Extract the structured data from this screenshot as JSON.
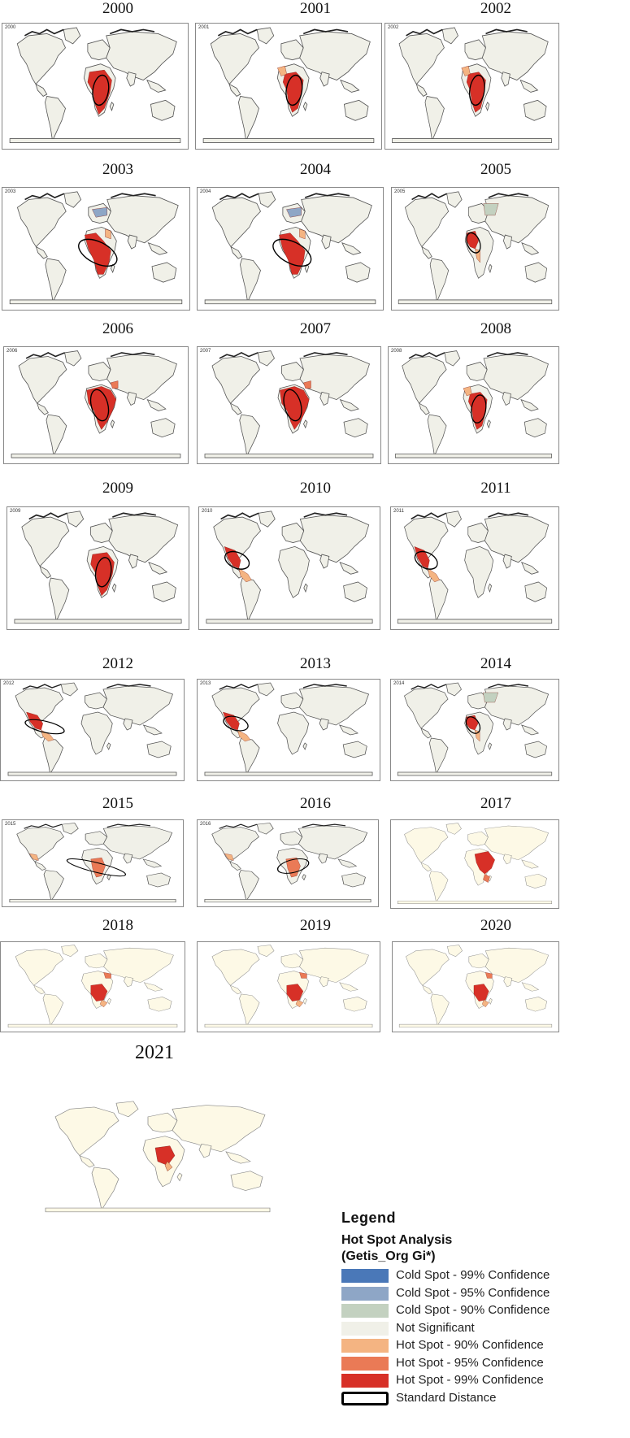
{
  "maps": [
    {
      "year": "2000",
      "corner": "2000",
      "style": "a",
      "hot": "africa-south",
      "ellipse": "africa-small"
    },
    {
      "year": "2001",
      "corner": "2001",
      "style": "a",
      "hot": "africa-south2",
      "ellipse": "africa-small"
    },
    {
      "year": "2002",
      "corner": "2002",
      "style": "a",
      "hot": "africa-south2",
      "ellipse": "africa-small"
    },
    {
      "year": "2003",
      "corner": "2003",
      "style": "a",
      "hot": "africa-west",
      "ellipse": "africa-wide"
    },
    {
      "year": "2004",
      "corner": "2004",
      "style": "a",
      "hot": "africa-west",
      "ellipse": "africa-wide"
    },
    {
      "year": "2005",
      "corner": "2005",
      "style": "a",
      "hot": "africa-west-small",
      "ellipse": "africa-westsmall"
    },
    {
      "year": "2006",
      "corner": "2006",
      "style": "a",
      "hot": "africa-full",
      "ellipse": "africa-mid"
    },
    {
      "year": "2007",
      "corner": "2007",
      "style": "a",
      "hot": "africa-full",
      "ellipse": "africa-mid"
    },
    {
      "year": "2008",
      "corner": "2008",
      "style": "a",
      "hot": "africa-south2",
      "ellipse": "africa-small"
    },
    {
      "year": "2009",
      "corner": "2009",
      "style": "a",
      "hot": "africa-south",
      "ellipse": "africa-small"
    },
    {
      "year": "2010",
      "corner": "2010",
      "style": "a",
      "hot": "americas",
      "ellipse": "americas"
    },
    {
      "year": "2011",
      "corner": "2011",
      "style": "a",
      "hot": "americas",
      "ellipse": "americas"
    },
    {
      "year": "2012",
      "corner": "2012",
      "style": "a",
      "hot": "americas",
      "ellipse": "americas-wide"
    },
    {
      "year": "2013",
      "corner": "2013",
      "style": "a",
      "hot": "americas",
      "ellipse": "americas"
    },
    {
      "year": "2014",
      "corner": "2014",
      "style": "a",
      "hot": "africa-west-small",
      "ellipse": "africa-westsmall"
    },
    {
      "year": "2015",
      "corner": "2015",
      "style": "a",
      "hot": "africa-light",
      "ellipse": "atlantic"
    },
    {
      "year": "2016",
      "corner": "2016",
      "style": "a",
      "hot": "africa-light",
      "ellipse": "africa-east"
    },
    {
      "year": "2017",
      "corner": "",
      "style": "b",
      "hot": "africa-east",
      "ellipse": ""
    },
    {
      "year": "2018",
      "corner": "",
      "style": "b",
      "hot": "africa-central",
      "ellipse": ""
    },
    {
      "year": "2019",
      "corner": "",
      "style": "b",
      "hot": "africa-central",
      "ellipse": ""
    },
    {
      "year": "2020",
      "corner": "",
      "style": "b",
      "hot": "africa-central",
      "ellipse": ""
    },
    {
      "year": "2021",
      "corner": "",
      "style": "b",
      "hot": "africa-mid-only",
      "ellipse": ""
    }
  ],
  "legend": {
    "title": "Legend",
    "subtitle1": "Hot Spot Analysis",
    "subtitle2": "(Getis_Org Gi*)",
    "items": [
      {
        "label": "Cold Spot - 99% Confidence",
        "color": "#4a78b8"
      },
      {
        "label": "Cold Spot - 95% Confidence",
        "color": "#8ea6c6"
      },
      {
        "label": "Cold Spot - 90% Confidence",
        "color": "#c3d1c0"
      },
      {
        "label": "Not Significant",
        "color": "#f0f0e8"
      },
      {
        "label": "Hot Spot - 90% Confidence",
        "color": "#f4b482"
      },
      {
        "label": "Hot Spot - 95% Confidence",
        "color": "#ea7a56"
      },
      {
        "label": "Hot Spot - 99% Confidence",
        "color": "#d73027"
      },
      {
        "label": "Standard Distance",
        "color": "#000000"
      }
    ]
  },
  "colors": {
    "land_a": "#f0f0e8",
    "land_b": "#fdf9e6",
    "hot99": "#d73027",
    "hot95": "#ea7a56",
    "hot90": "#f4b482",
    "cold90": "#c3d1c0",
    "cold95": "#8ea6c6"
  }
}
